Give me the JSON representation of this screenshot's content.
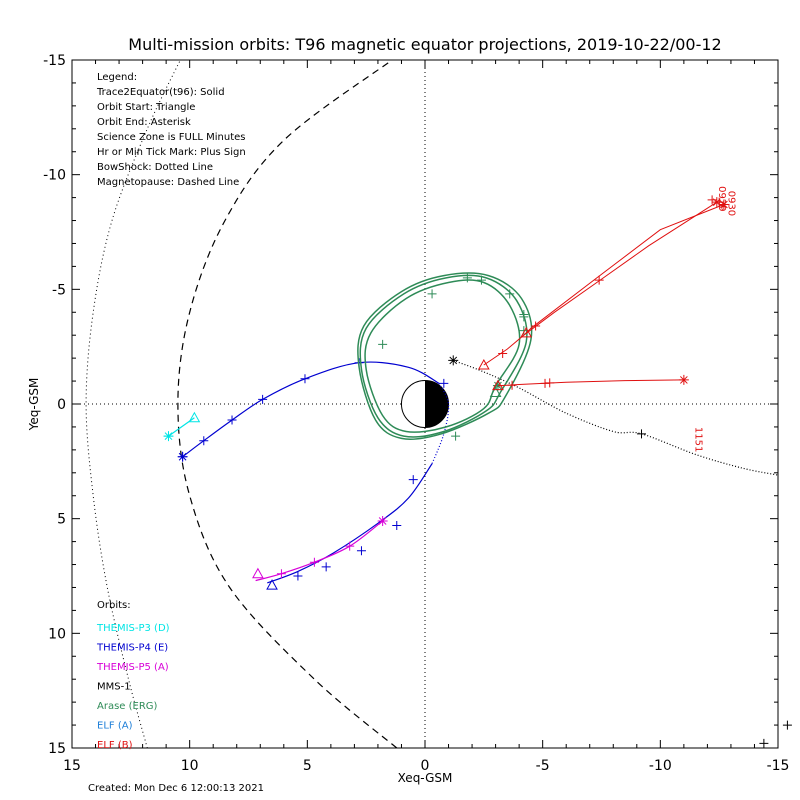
{
  "chart_data": {
    "type": "line",
    "title": "Multi-mission orbits: T96 magnetic equator projections, 2019-10-22/00-12",
    "xlabel": "Xeq-GSM",
    "ylabel": "Yeq-GSM",
    "xlim": [
      15,
      -15
    ],
    "ylim": [
      -15,
      15
    ],
    "x_ticks": [
      {
        "v": 15,
        "label": "15"
      },
      {
        "v": 10,
        "label": "10"
      },
      {
        "v": 5,
        "label": "5"
      },
      {
        "v": 0,
        "label": "0"
      },
      {
        "v": -5,
        "label": "-5"
      },
      {
        "v": -10,
        "label": "-10"
      },
      {
        "v": -15,
        "label": "-15"
      }
    ],
    "y_ticks": [
      {
        "v": -15,
        "label": "-15"
      },
      {
        "v": -10,
        "label": "-10"
      },
      {
        "v": -5,
        "label": "-5"
      },
      {
        "v": 0,
        "label": "0"
      },
      {
        "v": 5,
        "label": "5"
      },
      {
        "v": 10,
        "label": "10"
      },
      {
        "v": 15,
        "label": "15"
      }
    ],
    "legend_info": [
      "Legend:",
      "Trace2Equator(t96): Solid",
      "Orbit Start: Triangle",
      "Orbit End: Asterisk",
      "Science Zone is FULL Minutes",
      "Hr or Min Tick Mark: Plus Sign",
      "BowShock: Dotted Line",
      "Magnetopause: Dashed Line"
    ],
    "orbits_heading": "Orbits:",
    "orbits": [
      {
        "name": "THEMIS-P3 (D)",
        "color": "#00e5e5"
      },
      {
        "name": "THEMIS-P4 (E)",
        "color": "#0000d0"
      },
      {
        "name": "THEMIS-P5 (A)",
        "color": "#d800d8"
      },
      {
        "name": "MMS-1",
        "color": "#000000"
      },
      {
        "name": "Arase (ERG)",
        "color": "#2e8b57"
      },
      {
        "name": "ELF (A)",
        "color": "#1e7fd8"
      },
      {
        "name": "ELF (B)",
        "color": "#e01010"
      }
    ],
    "created": "Created: Mon Dec  6 12:00:13 2021",
    "elf_labels": [
      {
        "text": "1151",
        "x": -11.5,
        "y": 1.0,
        "color": "#e01010"
      },
      {
        "text": "0929",
        "x": -12.5,
        "y": -9.5,
        "color": "#e01010"
      },
      {
        "text": "0930",
        "x": -12.9,
        "y": -9.3,
        "color": "#e01010"
      }
    ],
    "bowshock": [
      [
        11.8,
        15
      ],
      [
        12.6,
        12
      ],
      [
        13.5,
        8
      ],
      [
        14.1,
        4
      ],
      [
        14.4,
        0
      ],
      [
        14.1,
        -4
      ],
      [
        13.3,
        -8
      ],
      [
        11.8,
        -12
      ],
      [
        10.4,
        -15
      ]
    ],
    "magnetopause": [
      [
        1.2,
        15
      ],
      [
        4.7,
        12
      ],
      [
        8.3,
        8
      ],
      [
        10.0,
        4
      ],
      [
        10.5,
        0
      ],
      [
        10.0,
        -4
      ],
      [
        8.5,
        -8
      ],
      [
        6.0,
        -11.5
      ],
      [
        1.4,
        -15
      ]
    ],
    "series": [
      {
        "name": "THEMIS-P3 (D)",
        "color": "#00e5e5",
        "style": "solid",
        "points": [
          [
            9.8,
            0.6
          ],
          [
            10.9,
            1.4
          ]
        ],
        "ticks": [
          [
            10.9,
            1.4
          ]
        ],
        "start": [
          9.8,
          0.6
        ],
        "end": [
          10.9,
          1.4
        ]
      },
      {
        "name": "THEMIS-P4 (E)",
        "color": "#0000d0",
        "style": "solid",
        "points": [
          [
            10.3,
            2.3
          ],
          [
            9.4,
            1.6
          ],
          [
            8.2,
            0.7
          ],
          [
            6.9,
            -0.2
          ],
          [
            5.1,
            -1.1
          ],
          [
            2.8,
            -1.8
          ],
          [
            0.7,
            -1.6
          ],
          [
            -0.6,
            -0.9
          ],
          [
            -1.0,
            0
          ],
          [
            -0.8,
            1.3
          ],
          [
            -0.3,
            2.6
          ],
          [
            0.7,
            4.1
          ],
          [
            2.0,
            5.2
          ],
          [
            3.9,
            6.5
          ],
          [
            5.4,
            7.3
          ],
          [
            6.7,
            7.8
          ]
        ],
        "dotted_from": 7,
        "dotted_to": 10,
        "ticks": [
          [
            10.3,
            2.3
          ],
          [
            9.4,
            1.6
          ],
          [
            8.2,
            0.7
          ],
          [
            6.9,
            -0.2
          ],
          [
            5.1,
            -1.1
          ],
          [
            2.8,
            -1.8
          ],
          [
            -0.8,
            -0.9
          ],
          [
            0.5,
            3.3
          ],
          [
            1.2,
            5.3
          ],
          [
            2.7,
            6.4
          ],
          [
            4.2,
            7.1
          ],
          [
            5.4,
            7.5
          ]
        ],
        "start": [
          6.5,
          7.9
        ],
        "end": [
          10.3,
          2.3
        ]
      },
      {
        "name": "THEMIS-P5 (A)",
        "color": "#d800d8",
        "style": "solid",
        "points": [
          [
            1.8,
            5.1
          ],
          [
            3.2,
            6.2
          ],
          [
            4.7,
            6.9
          ],
          [
            6.1,
            7.4
          ],
          [
            7.2,
            7.7
          ]
        ],
        "ticks": [
          [
            3.2,
            6.2
          ],
          [
            4.7,
            6.9
          ],
          [
            6.1,
            7.4
          ]
        ],
        "start": [
          7.1,
          7.4
        ],
        "end": [
          1.8,
          5.1
        ]
      },
      {
        "name": "MMS-1",
        "color": "#000000",
        "style": "dotted",
        "points": [
          [
            -1.2,
            -1.9
          ],
          [
            -2.5,
            -1.4
          ],
          [
            -4.0,
            -0.7
          ],
          [
            -6.0,
            0.4
          ],
          [
            -8.0,
            1.2
          ],
          [
            -9.2,
            1.3
          ],
          [
            -11.5,
            2.2
          ],
          [
            -13.5,
            2.8
          ],
          [
            -15.0,
            3.1
          ]
        ],
        "ticks": [
          [
            -9.2,
            1.3
          ]
        ],
        "end": [
          -1.2,
          -1.9
        ]
      },
      {
        "name": "Arase (ERG)",
        "color": "#2e8b57",
        "style": "solid",
        "loops": [
          [
            [
              -3.0,
              -0.8
            ],
            [
              -4.0,
              -2.6
            ],
            [
              -3.6,
              -4.3
            ],
            [
              -2.5,
              -5.3
            ],
            [
              -1.0,
              -5.3
            ],
            [
              0.8,
              -4.6
            ],
            [
              2.3,
              -3.1
            ],
            [
              2.5,
              -1.5
            ],
            [
              1.8,
              0.5
            ],
            [
              0.8,
              1.2
            ],
            [
              -0.9,
              1.0
            ],
            [
              -2.5,
              0.2
            ],
            [
              -3.0,
              -0.8
            ]
          ],
          [
            [
              -3.2,
              -0.5
            ],
            [
              -4.3,
              -2.7
            ],
            [
              -3.9,
              -4.5
            ],
            [
              -2.6,
              -5.5
            ],
            [
              -0.9,
              -5.5
            ],
            [
              0.9,
              -4.8
            ],
            [
              2.5,
              -3.3
            ],
            [
              2.7,
              -1.5
            ],
            [
              2.0,
              0.6
            ],
            [
              0.9,
              1.4
            ],
            [
              -0.8,
              1.2
            ],
            [
              -2.6,
              0.3
            ],
            [
              -3.2,
              -0.5
            ]
          ],
          [
            [
              -3.4,
              -0.3
            ],
            [
              -4.5,
              -2.8
            ],
            [
              -4.1,
              -4.6
            ],
            [
              -2.7,
              -5.6
            ],
            [
              -0.8,
              -5.6
            ],
            [
              1.0,
              -4.9
            ],
            [
              2.6,
              -3.4
            ],
            [
              2.8,
              -1.6
            ],
            [
              2.1,
              0.7
            ],
            [
              1.0,
              1.5
            ],
            [
              -0.7,
              1.3
            ],
            [
              -2.7,
              0.4
            ],
            [
              -3.4,
              -0.3
            ]
          ]
        ],
        "ticks": [
          [
            -4.2,
            -3.9
          ],
          [
            -4.2,
            -3.8
          ],
          [
            -3.6,
            -4.8
          ],
          [
            -2.4,
            -5.4
          ],
          [
            -1.8,
            -5.5
          ],
          [
            -0.3,
            -4.8
          ],
          [
            1.8,
            -2.6
          ],
          [
            -3.1,
            -0.8
          ],
          [
            -4.2,
            -3.2
          ],
          [
            -1.3,
            1.4
          ]
        ],
        "start": [
          -3.0,
          -0.5
        ],
        "end": [
          -3.1,
          -0.8
        ]
      },
      {
        "name": "ELF (B)",
        "color": "#e01010",
        "style": "solid",
        "tracks": [
          [
            [
              -3.1,
              -0.8
            ],
            [
              -4.0,
              -0.85
            ],
            [
              -6.0,
              -0.95
            ],
            [
              -8.5,
              -1.02
            ],
            [
              -11.0,
              -1.05
            ]
          ],
          [
            [
              -2.5,
              -1.7
            ],
            [
              -3.5,
              -2.4
            ],
            [
              -4.2,
              -3.0
            ],
            [
              -5.5,
              -4.0
            ],
            [
              -7.3,
              -5.3
            ],
            [
              -9.5,
              -6.9
            ],
            [
              -12.4,
              -8.8
            ]
          ],
          [
            [
              -4.2,
              -3.0
            ],
            [
              -4.5,
              -3.3
            ],
            [
              -7.3,
              -5.5
            ],
            [
              -10.0,
              -7.6
            ],
            [
              -12.7,
              -8.7
            ]
          ]
        ],
        "ticks": [
          [
            -3.7,
            -0.82
          ],
          [
            -5.1,
            -0.9
          ],
          [
            -5.3,
            -0.92
          ],
          [
            -3.3,
            -2.2
          ],
          [
            -4.7,
            -3.4
          ],
          [
            -7.4,
            -5.4
          ],
          [
            -12.2,
            -8.9
          ],
          [
            -12.5,
            -8.8
          ]
        ],
        "start": [
          [
            -3.1,
            -0.8
          ],
          [
            -2.5,
            -1.7
          ],
          [
            -4.3,
            -3.1
          ]
        ],
        "end": [
          [
            -11.0,
            -1.05
          ],
          [
            -12.7,
            -8.7
          ],
          [
            -12.4,
            -8.8
          ]
        ]
      }
    ],
    "earth": {
      "radius": 1.0
    },
    "corner_marks": [
      [
        -14.4,
        14.8
      ],
      [
        -15.4,
        14.0
      ]
    ]
  }
}
